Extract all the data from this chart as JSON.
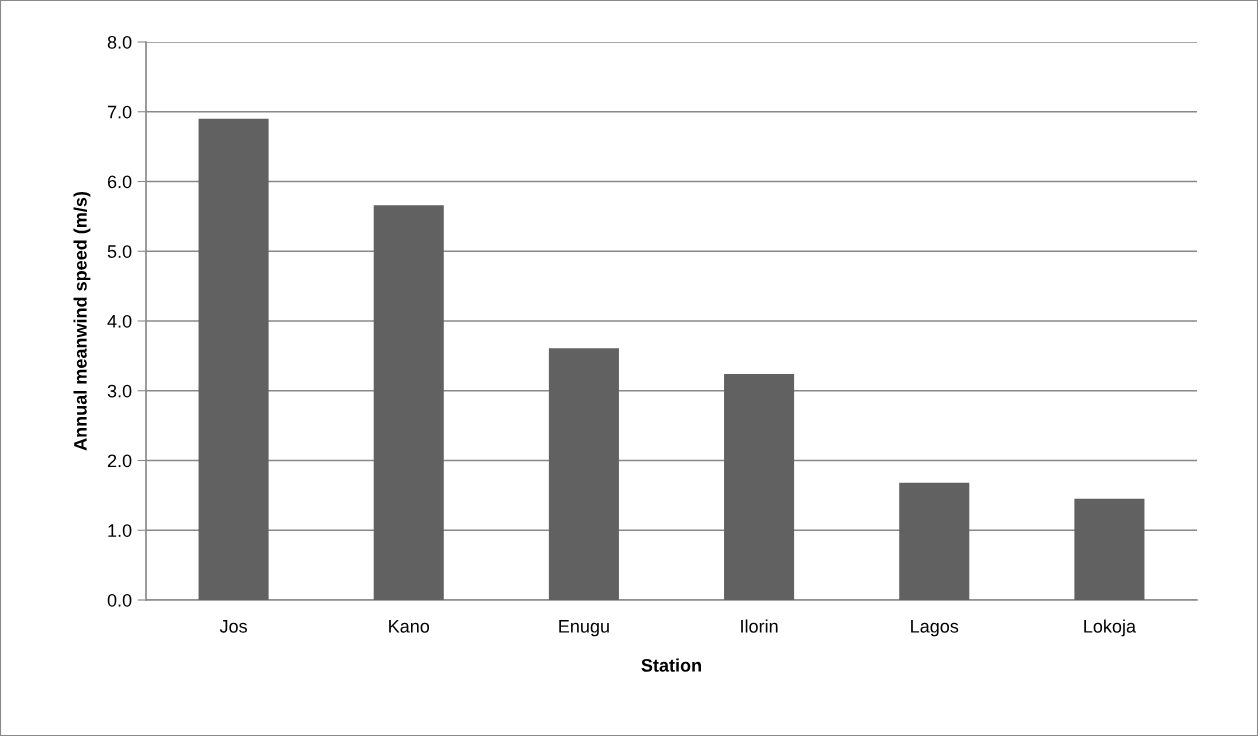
{
  "chart_data": {
    "type": "bar",
    "xlabel": "Station",
    "ylabel": "Annual meanwind speed (m/s)",
    "categories": [
      "Jos",
      "Kano",
      "Enugu",
      "Ilorin",
      "Lagos",
      "Lokoja"
    ],
    "values": [
      6.9,
      5.66,
      3.61,
      3.24,
      1.68,
      1.45
    ],
    "color": "#616161",
    "ylim": [
      0,
      8
    ],
    "yticks": [
      {
        "value": 0,
        "label": "0.0"
      },
      {
        "value": 1,
        "label": "1.0"
      },
      {
        "value": 2,
        "label": "2.0"
      },
      {
        "value": 3,
        "label": "3.0"
      },
      {
        "value": 4,
        "label": "4.0"
      },
      {
        "value": 5,
        "label": "5.0"
      },
      {
        "value": 6,
        "label": "6.0"
      },
      {
        "value": 7,
        "label": "7.0"
      },
      {
        "value": 8,
        "label": "8.0"
      }
    ],
    "grid": "y"
  }
}
